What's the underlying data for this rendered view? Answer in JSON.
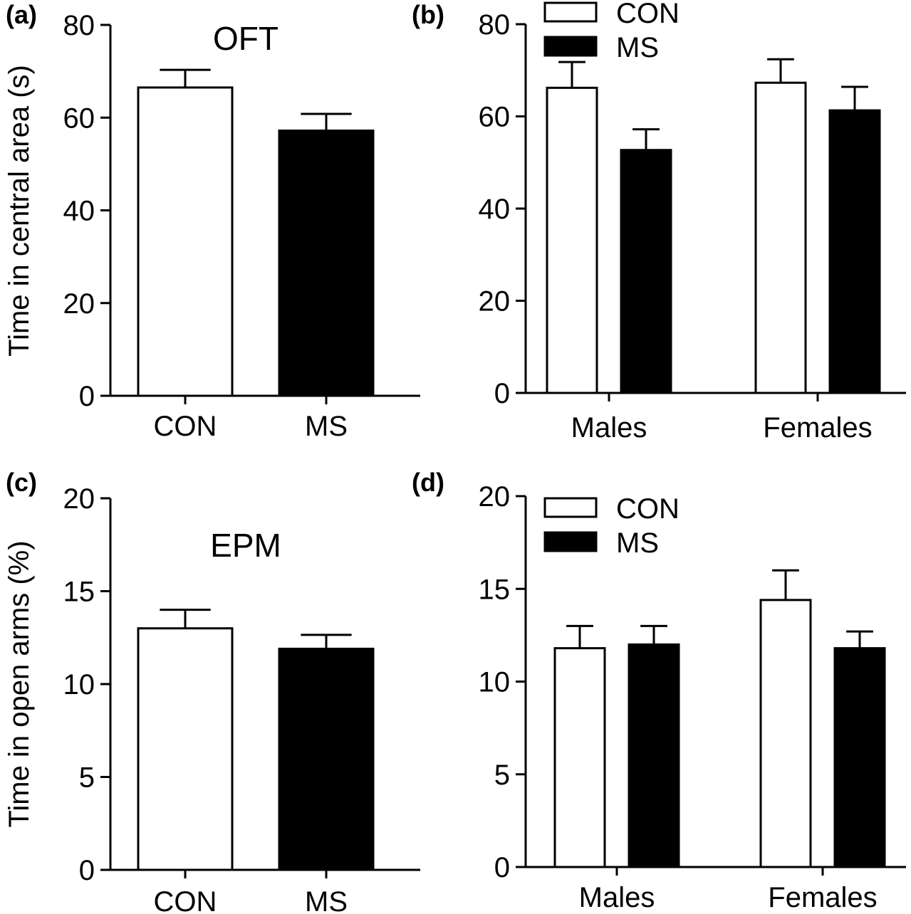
{
  "chart_data": [
    {
      "panel": "(a)",
      "type": "bar",
      "title": "OFT",
      "ylabel": "Time in central area (s)",
      "ylim": [
        0,
        80
      ],
      "yticks": [
        "0",
        "20",
        "40",
        "60",
        "80"
      ],
      "categories": [
        "CON",
        "MS"
      ],
      "series": [
        {
          "values": [
            66.5,
            57.2
          ],
          "errors": [
            3.8,
            3.6
          ],
          "fill": "#ffffff"
        }
      ],
      "bar_fills": [
        "#ffffff",
        "#000000"
      ]
    },
    {
      "panel": "(b)",
      "type": "bar",
      "title": "",
      "ylabel": "",
      "ylim": [
        0,
        80
      ],
      "yticks": [
        "0",
        "20",
        "40",
        "60",
        "80"
      ],
      "categories": [
        "Males",
        "Females"
      ],
      "series": [
        {
          "name": "CON",
          "values": [
            66.2,
            67.3
          ],
          "errors": [
            5.6,
            5.1
          ],
          "fill": "#ffffff"
        },
        {
          "name": "MS",
          "values": [
            52.7,
            61.3
          ],
          "errors": [
            4.5,
            5.1
          ],
          "fill": "#000000"
        }
      ],
      "legend": "top-left"
    },
    {
      "panel": "(c)",
      "type": "bar",
      "title": "EPM",
      "ylabel": "Time in open arms (%)",
      "ylim": [
        0,
        20
      ],
      "yticks": [
        "0",
        "5",
        "10",
        "15",
        "20"
      ],
      "categories": [
        "CON",
        "MS"
      ],
      "series": [
        {
          "values": [
            13.0,
            11.9
          ],
          "errors": [
            1.0,
            0.75
          ],
          "fill": "#ffffff"
        }
      ],
      "bar_fills": [
        "#ffffff",
        "#000000"
      ]
    },
    {
      "panel": "(d)",
      "type": "bar",
      "title": "",
      "ylabel": "",
      "ylim": [
        0,
        20
      ],
      "yticks": [
        "0",
        "5",
        "10",
        "15",
        "20"
      ],
      "categories": [
        "Males",
        "Females"
      ],
      "series": [
        {
          "name": "CON",
          "values": [
            11.8,
            14.4
          ],
          "errors": [
            1.2,
            1.6
          ],
          "fill": "#ffffff"
        },
        {
          "name": "MS",
          "values": [
            12.0,
            11.8
          ],
          "errors": [
            1.0,
            0.9
          ],
          "fill": "#000000"
        }
      ],
      "legend": "top-left"
    }
  ]
}
